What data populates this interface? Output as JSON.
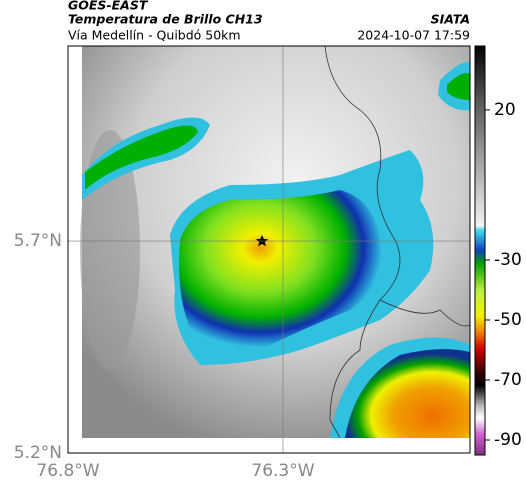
{
  "header": {
    "satellite": "GOES-EAST",
    "product": "Temperatura de Brillo CH13",
    "source": "SIATA",
    "region": "Vía Medellín - Quibdó 50km",
    "datetime": "2024-10-07 17:59"
  },
  "map": {
    "latlim": [
      5.2,
      6.16
    ],
    "lonlim": [
      -76.8,
      -75.865
    ],
    "yticks": [
      {
        "value": 5.7,
        "label": "5.7°N"
      },
      {
        "value": 5.2,
        "label": "5.2°N"
      }
    ],
    "xticks": [
      {
        "value": -76.8,
        "label": "76.8°W"
      },
      {
        "value": -76.3,
        "label": "76.3°W"
      }
    ]
  },
  "colorbar": {
    "lim": [
      -95,
      41.3
    ],
    "ticks": [
      20,
      -30,
      -50,
      -70,
      -90
    ]
  }
}
